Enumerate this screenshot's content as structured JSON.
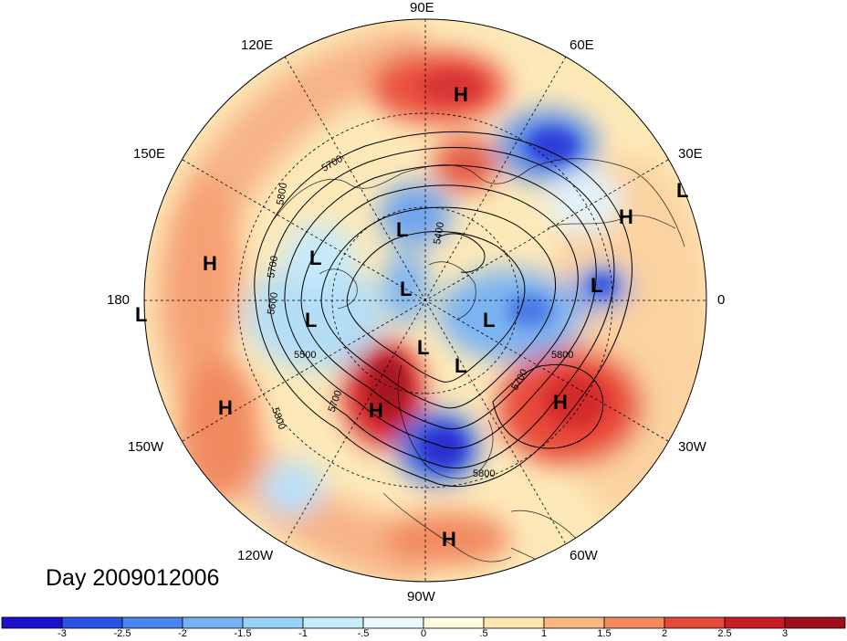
{
  "title_text": "Day 2009012006",
  "longitude_labels": [
    {
      "text": "90E",
      "lon": 90
    },
    {
      "text": "60E",
      "lon": 60
    },
    {
      "text": "30E",
      "lon": 30
    },
    {
      "text": "0",
      "lon": 0
    },
    {
      "text": "30W",
      "lon": -30
    },
    {
      "text": "60W",
      "lon": -60
    },
    {
      "text": "90W",
      "lon": -90
    },
    {
      "text": "120W",
      "lon": -120
    },
    {
      "text": "150W",
      "lon": -150
    },
    {
      "text": "180",
      "lon": 180
    },
    {
      "text": "150E",
      "lon": 150
    },
    {
      "text": "120E",
      "lon": 120
    }
  ],
  "pressure_markers": [
    {
      "text": "H",
      "kind": "high"
    },
    {
      "text": "H",
      "kind": "high"
    },
    {
      "text": "H",
      "kind": "high"
    },
    {
      "text": "H",
      "kind": "high"
    },
    {
      "text": "H",
      "kind": "high"
    },
    {
      "text": "H",
      "kind": "high"
    },
    {
      "text": "H",
      "kind": "high"
    },
    {
      "text": "L",
      "kind": "low"
    },
    {
      "text": "L",
      "kind": "low"
    },
    {
      "text": "L",
      "kind": "low"
    },
    {
      "text": "L",
      "kind": "low"
    },
    {
      "text": "L",
      "kind": "low"
    },
    {
      "text": "L",
      "kind": "low"
    },
    {
      "text": "L",
      "kind": "low"
    },
    {
      "text": "L",
      "kind": "low"
    },
    {
      "text": "L",
      "kind": "low"
    },
    {
      "text": "L",
      "kind": "low"
    }
  ],
  "contour_labels": [
    "5700",
    "5800",
    "5700",
    "5600",
    "5500",
    "5800",
    "5700",
    "5700",
    "5800",
    "5800",
    "5400"
  ],
  "colorbar": {
    "labels": [
      "-3",
      "-2.5",
      "-2",
      "-1.5",
      "-1",
      "-.5",
      "0",
      ".5",
      "1",
      "1.5",
      "2",
      "2.5",
      "3"
    ],
    "colors": [
      "#1e10cf",
      "#2a52e6",
      "#4a86ef",
      "#76b2f3",
      "#9ad2f7",
      "#c7edfb",
      "#eaf8fd",
      "#fffbe0",
      "#fde6b0",
      "#f9b882",
      "#f38a5e",
      "#e84a3a",
      "#c81d24",
      "#9e0f1c"
    ]
  }
}
